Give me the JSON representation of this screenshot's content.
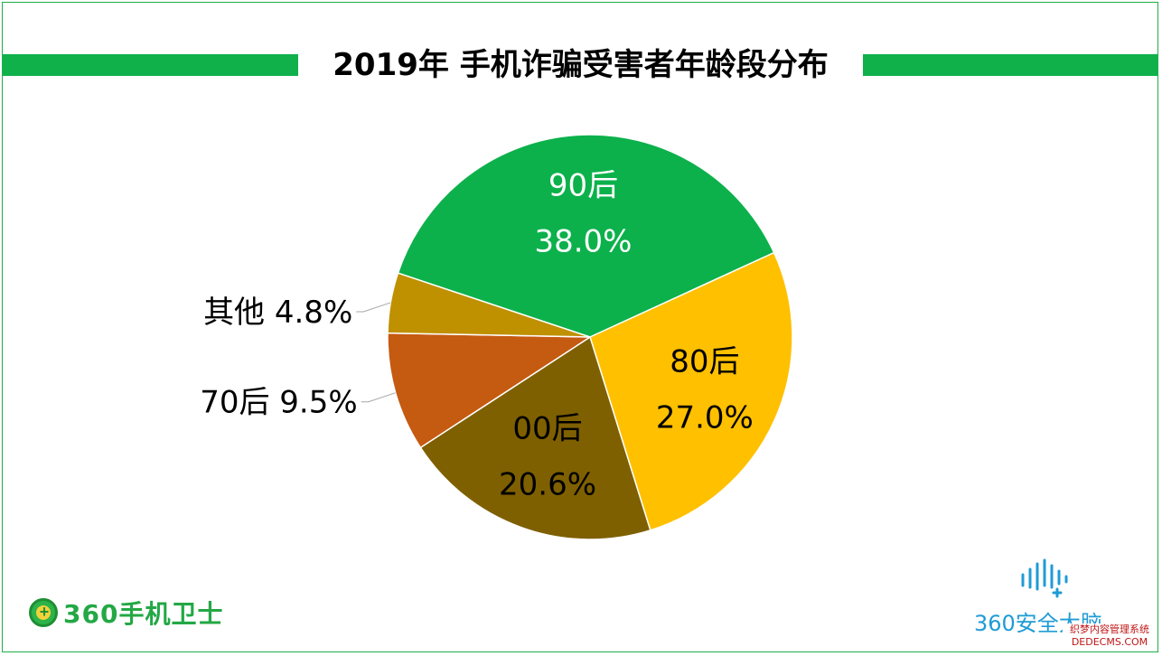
{
  "title": "2019年 手机诈骗受害者年龄段分布",
  "chart_data": {
    "type": "pie",
    "slices": [
      {
        "label": "90后",
        "value": 38.0,
        "value_label": "38.0%",
        "color": "#0cb14b",
        "label_color": "#ffffff"
      },
      {
        "label": "80后",
        "value": 27.0,
        "value_label": "27.0%",
        "color": "#ffc000",
        "label_color": "#000000"
      },
      {
        "label": "00后",
        "value": 20.6,
        "value_label": "20.6%",
        "color": "#7f6000",
        "label_color": "#000000"
      },
      {
        "label": "70后",
        "value": 9.5,
        "value_label": "9.5%",
        "color": "#c55a11",
        "label_color": "#000000"
      },
      {
        "label": "其他",
        "value": 4.8,
        "value_label": "4.8%",
        "color": "#bf9000",
        "label_color": "#000000"
      }
    ],
    "legend": "none"
  },
  "logo_left": {
    "text": "360手机卫士",
    "color": "#23a845"
  },
  "logo_right": {
    "text": "360安全大脑",
    "color": "#1f9bd6"
  },
  "watermark": {
    "line1": "织梦内容管理系统",
    "line2": "DEDECMS.COM"
  }
}
